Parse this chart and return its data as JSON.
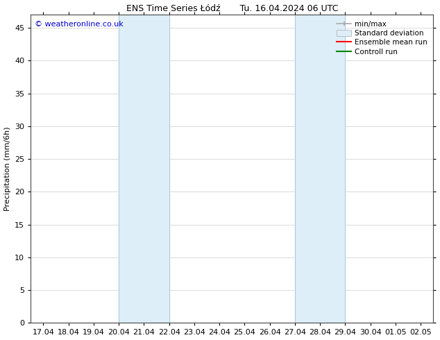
{
  "title": "ENS Time Series Łódź       Tu. 16.04.2024 06 UTC",
  "ylabel": "Precipitation (mm/6h)",
  "xlabel": "",
  "ylim": [
    0,
    47
  ],
  "yticks": [
    0,
    5,
    10,
    15,
    20,
    25,
    30,
    35,
    40,
    45
  ],
  "xtick_labels": [
    "17.04",
    "18.04",
    "19.04",
    "20.04",
    "21.04",
    "22.04",
    "23.04",
    "24.04",
    "25.04",
    "26.04",
    "27.04",
    "28.04",
    "29.04",
    "30.04",
    "01.05",
    "02.05"
  ],
  "xtick_positions": [
    0,
    1,
    2,
    3,
    4,
    5,
    6,
    7,
    8,
    9,
    10,
    11,
    12,
    13,
    14,
    15
  ],
  "xlim": [
    -0.5,
    15.5
  ],
  "shaded_regions": [
    {
      "x_start": 3,
      "x_end": 5,
      "color": "#ddeef8",
      "alpha": 1.0
    },
    {
      "x_start": 10,
      "x_end": 12,
      "color": "#ddeef8",
      "alpha": 1.0
    }
  ],
  "vline_pairs": [
    [
      3,
      5
    ],
    [
      10,
      12
    ]
  ],
  "vline_color": "#b0cce0",
  "vline_lw": 0.8,
  "grid_color": "#cccccc",
  "bg_color": "#ffffff",
  "watermark_text": "© weatheronline.co.uk",
  "watermark_color": "#0000cc",
  "watermark_fontsize": 8,
  "legend_items": [
    {
      "label": "min/max",
      "color": "#aaaaaa",
      "lw": 1.2,
      "style": "solid"
    },
    {
      "label": "Standard deviation",
      "facecolor": "#ddeef8",
      "edgecolor": "#aaaaaa"
    },
    {
      "label": "Ensemble mean run",
      "color": "#ff0000",
      "lw": 1.5,
      "style": "solid"
    },
    {
      "label": "Controll run",
      "color": "#008800",
      "lw": 1.5,
      "style": "solid"
    }
  ],
  "title_fontsize": 9,
  "ylabel_fontsize": 8,
  "tick_fontsize": 8,
  "legend_fontsize": 7.5
}
